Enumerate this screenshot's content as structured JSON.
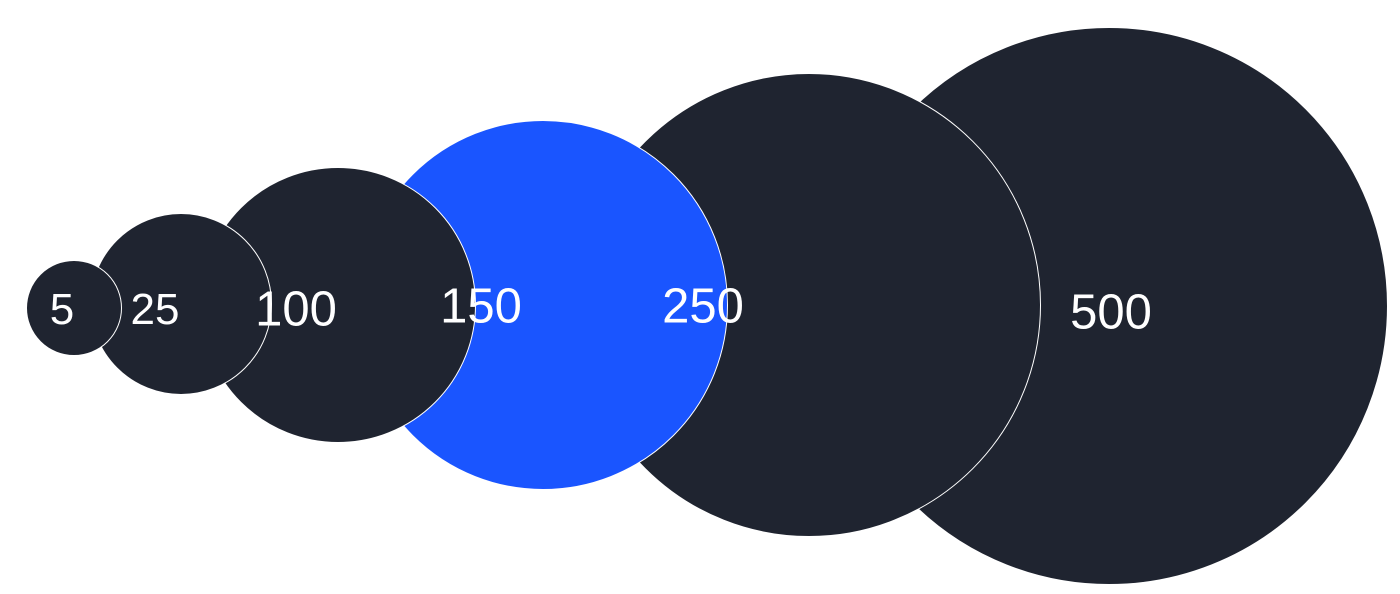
{
  "options": [
    {
      "value": "5",
      "selected": false
    },
    {
      "value": "25",
      "selected": false
    },
    {
      "value": "100",
      "selected": false
    },
    {
      "value": "150",
      "selected": true
    },
    {
      "value": "250",
      "selected": false
    },
    {
      "value": "500",
      "selected": false
    }
  ],
  "colors": {
    "default": "#1f2430",
    "selected": "#1a55ff",
    "text": "#ffffff",
    "border": "#ffffff"
  }
}
